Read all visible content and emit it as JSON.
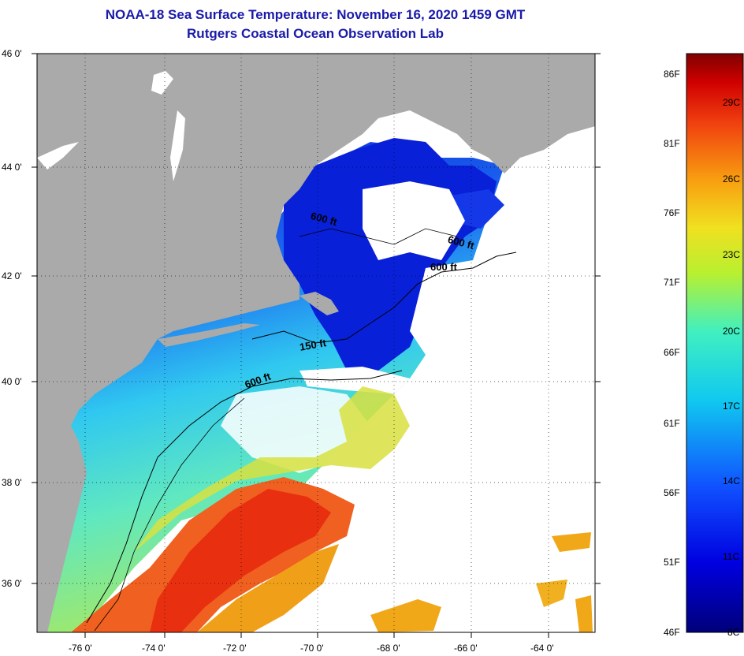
{
  "title": {
    "line1": "NOAA-18 Sea Surface Temperature:  November 16, 2020 1459 GMT",
    "line2": "Rutgers Coastal Ocean Observation Lab"
  },
  "map": {
    "lat_labels": [
      "46 0'",
      "44 0'",
      "42 0'",
      "40 0'",
      "38 0'",
      "36 0'"
    ],
    "lon_labels": [
      "-76 0'",
      "-74 0'",
      "-72 0'",
      "-70 0'",
      "-68 0'",
      "-66 0'",
      "-64 0'"
    ],
    "contour_labels": [
      "600 ft",
      "600 ft",
      "600 ft",
      "150 ft",
      "600 ft"
    ],
    "colors": {
      "land": "#aaaaaa",
      "cloud": "#ffffff",
      "cold": "#0a1fd0",
      "warm": "#e83a10"
    }
  },
  "colorbar": {
    "fahrenheit": [
      "86F",
      "81F",
      "76F",
      "71F",
      "66F",
      "61F",
      "56F",
      "51F",
      "46F"
    ],
    "celsius": [
      "29C",
      "26C",
      "23C",
      "20C",
      "17C",
      "14C",
      "11C",
      "8C"
    ]
  }
}
